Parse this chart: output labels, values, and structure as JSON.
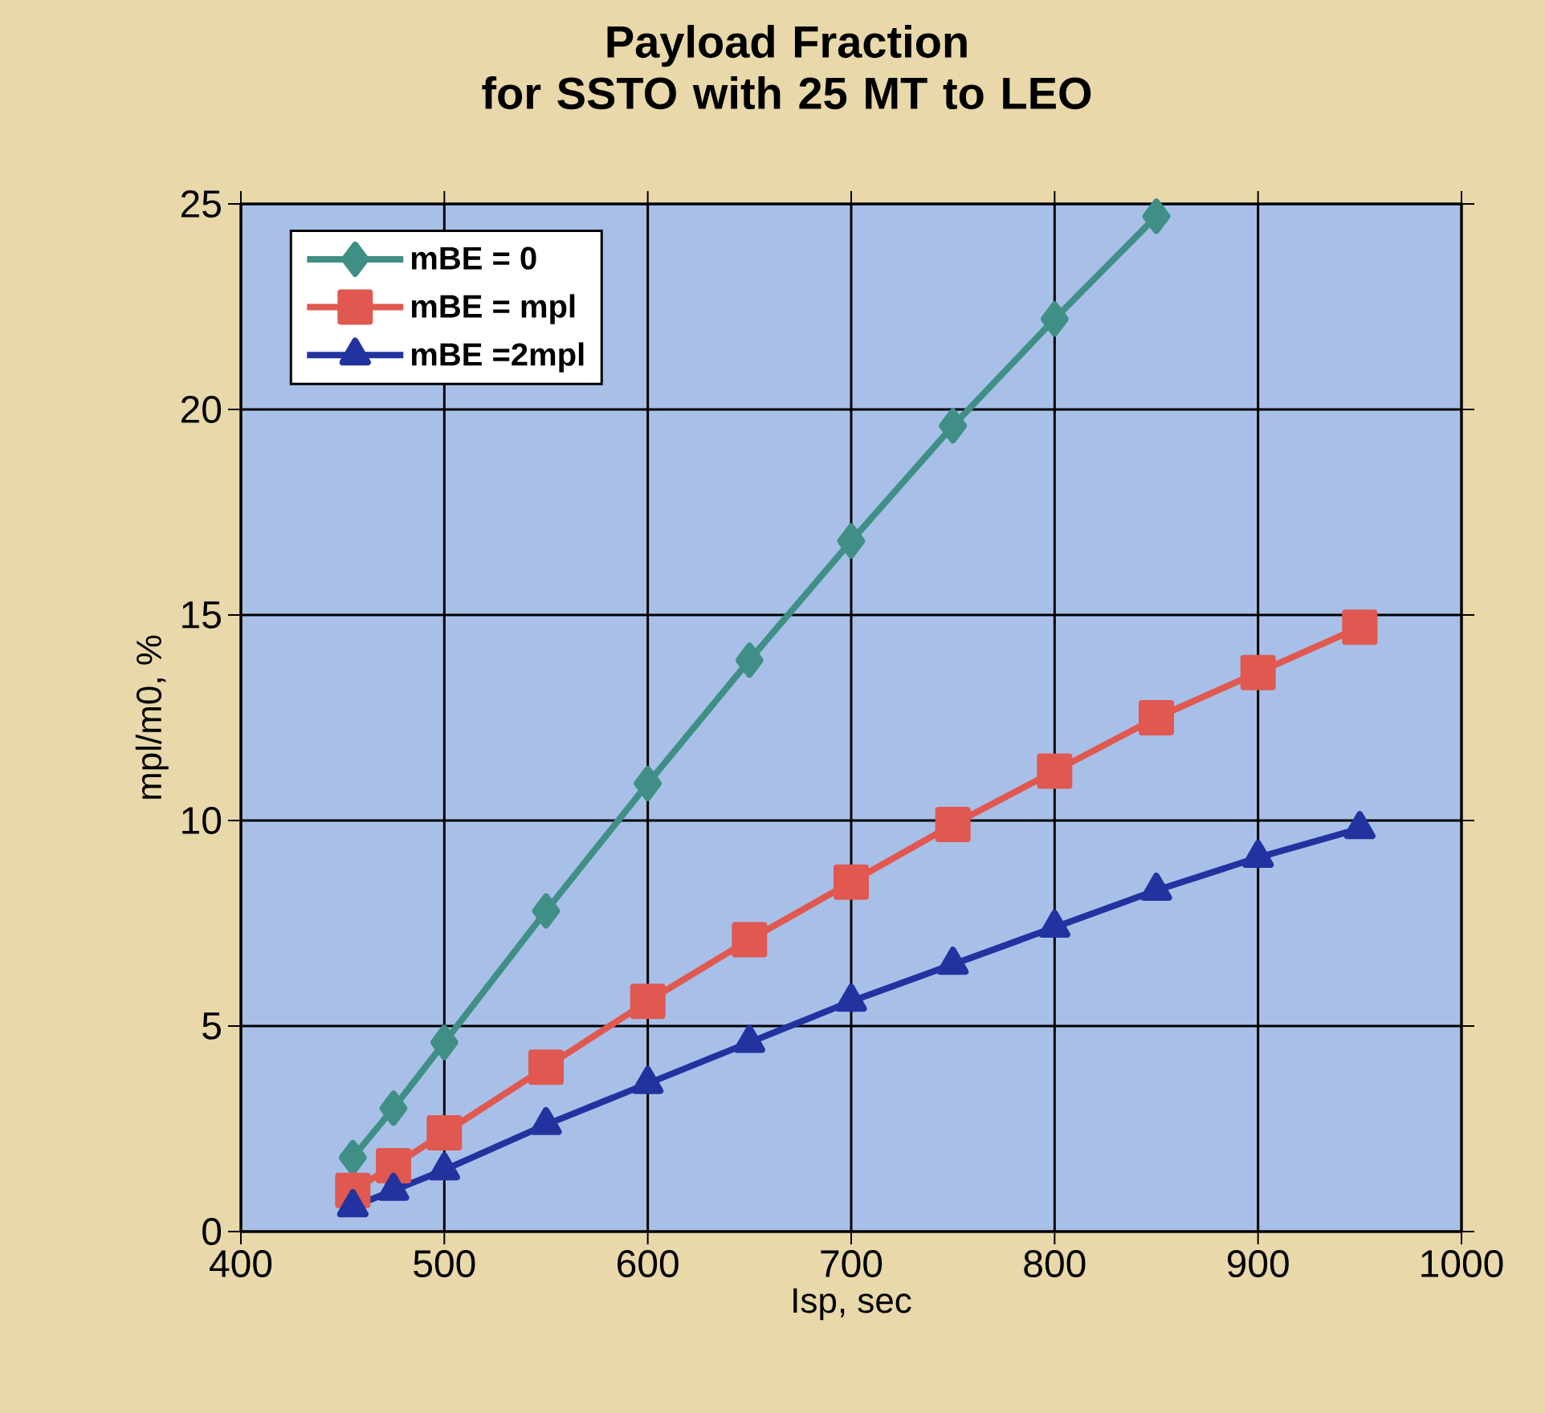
{
  "chart_data": {
    "type": "line",
    "title": "Payload Fraction\nfor SSTO with 25 MT to LEO",
    "xlabel": "Isp, sec",
    "ylabel": "mpl/m0, %",
    "xlim": [
      400,
      1000
    ],
    "xticks": [
      400,
      500,
      600,
      700,
      800,
      900,
      1000
    ],
    "ylim": [
      0,
      25
    ],
    "yticks": [
      0,
      5,
      10,
      15,
      20,
      25
    ],
    "grid": true,
    "legend": "top left",
    "line_style": "solid",
    "series": [
      {
        "name": "mBE = 0",
        "color": "#3f8f86",
        "marker": "diamond",
        "x": [
          455,
          475,
          500,
          550,
          600,
          650,
          700,
          750,
          800,
          850
        ],
        "values": [
          1.8,
          3.0,
          4.6,
          7.8,
          10.9,
          13.9,
          16.8,
          19.6,
          22.2,
          24.7
        ]
      },
      {
        "name": "mBE = mpl",
        "color": "#e0584f",
        "marker": "square",
        "x": [
          455,
          475,
          500,
          550,
          600,
          650,
          700,
          750,
          800,
          850,
          900,
          950
        ],
        "values": [
          1.0,
          1.6,
          2.4,
          4.0,
          5.6,
          7.1,
          8.5,
          9.9,
          11.2,
          12.5,
          13.6,
          14.7
        ]
      },
      {
        "name": "mBE =2mpl",
        "color": "#2233a0",
        "marker": "triangle",
        "x": [
          455,
          475,
          500,
          550,
          600,
          650,
          700,
          750,
          800,
          850,
          900,
          950
        ],
        "values": [
          0.6,
          1.0,
          1.5,
          2.6,
          3.6,
          4.6,
          5.6,
          6.5,
          7.4,
          8.3,
          9.1,
          9.8
        ]
      }
    ]
  }
}
